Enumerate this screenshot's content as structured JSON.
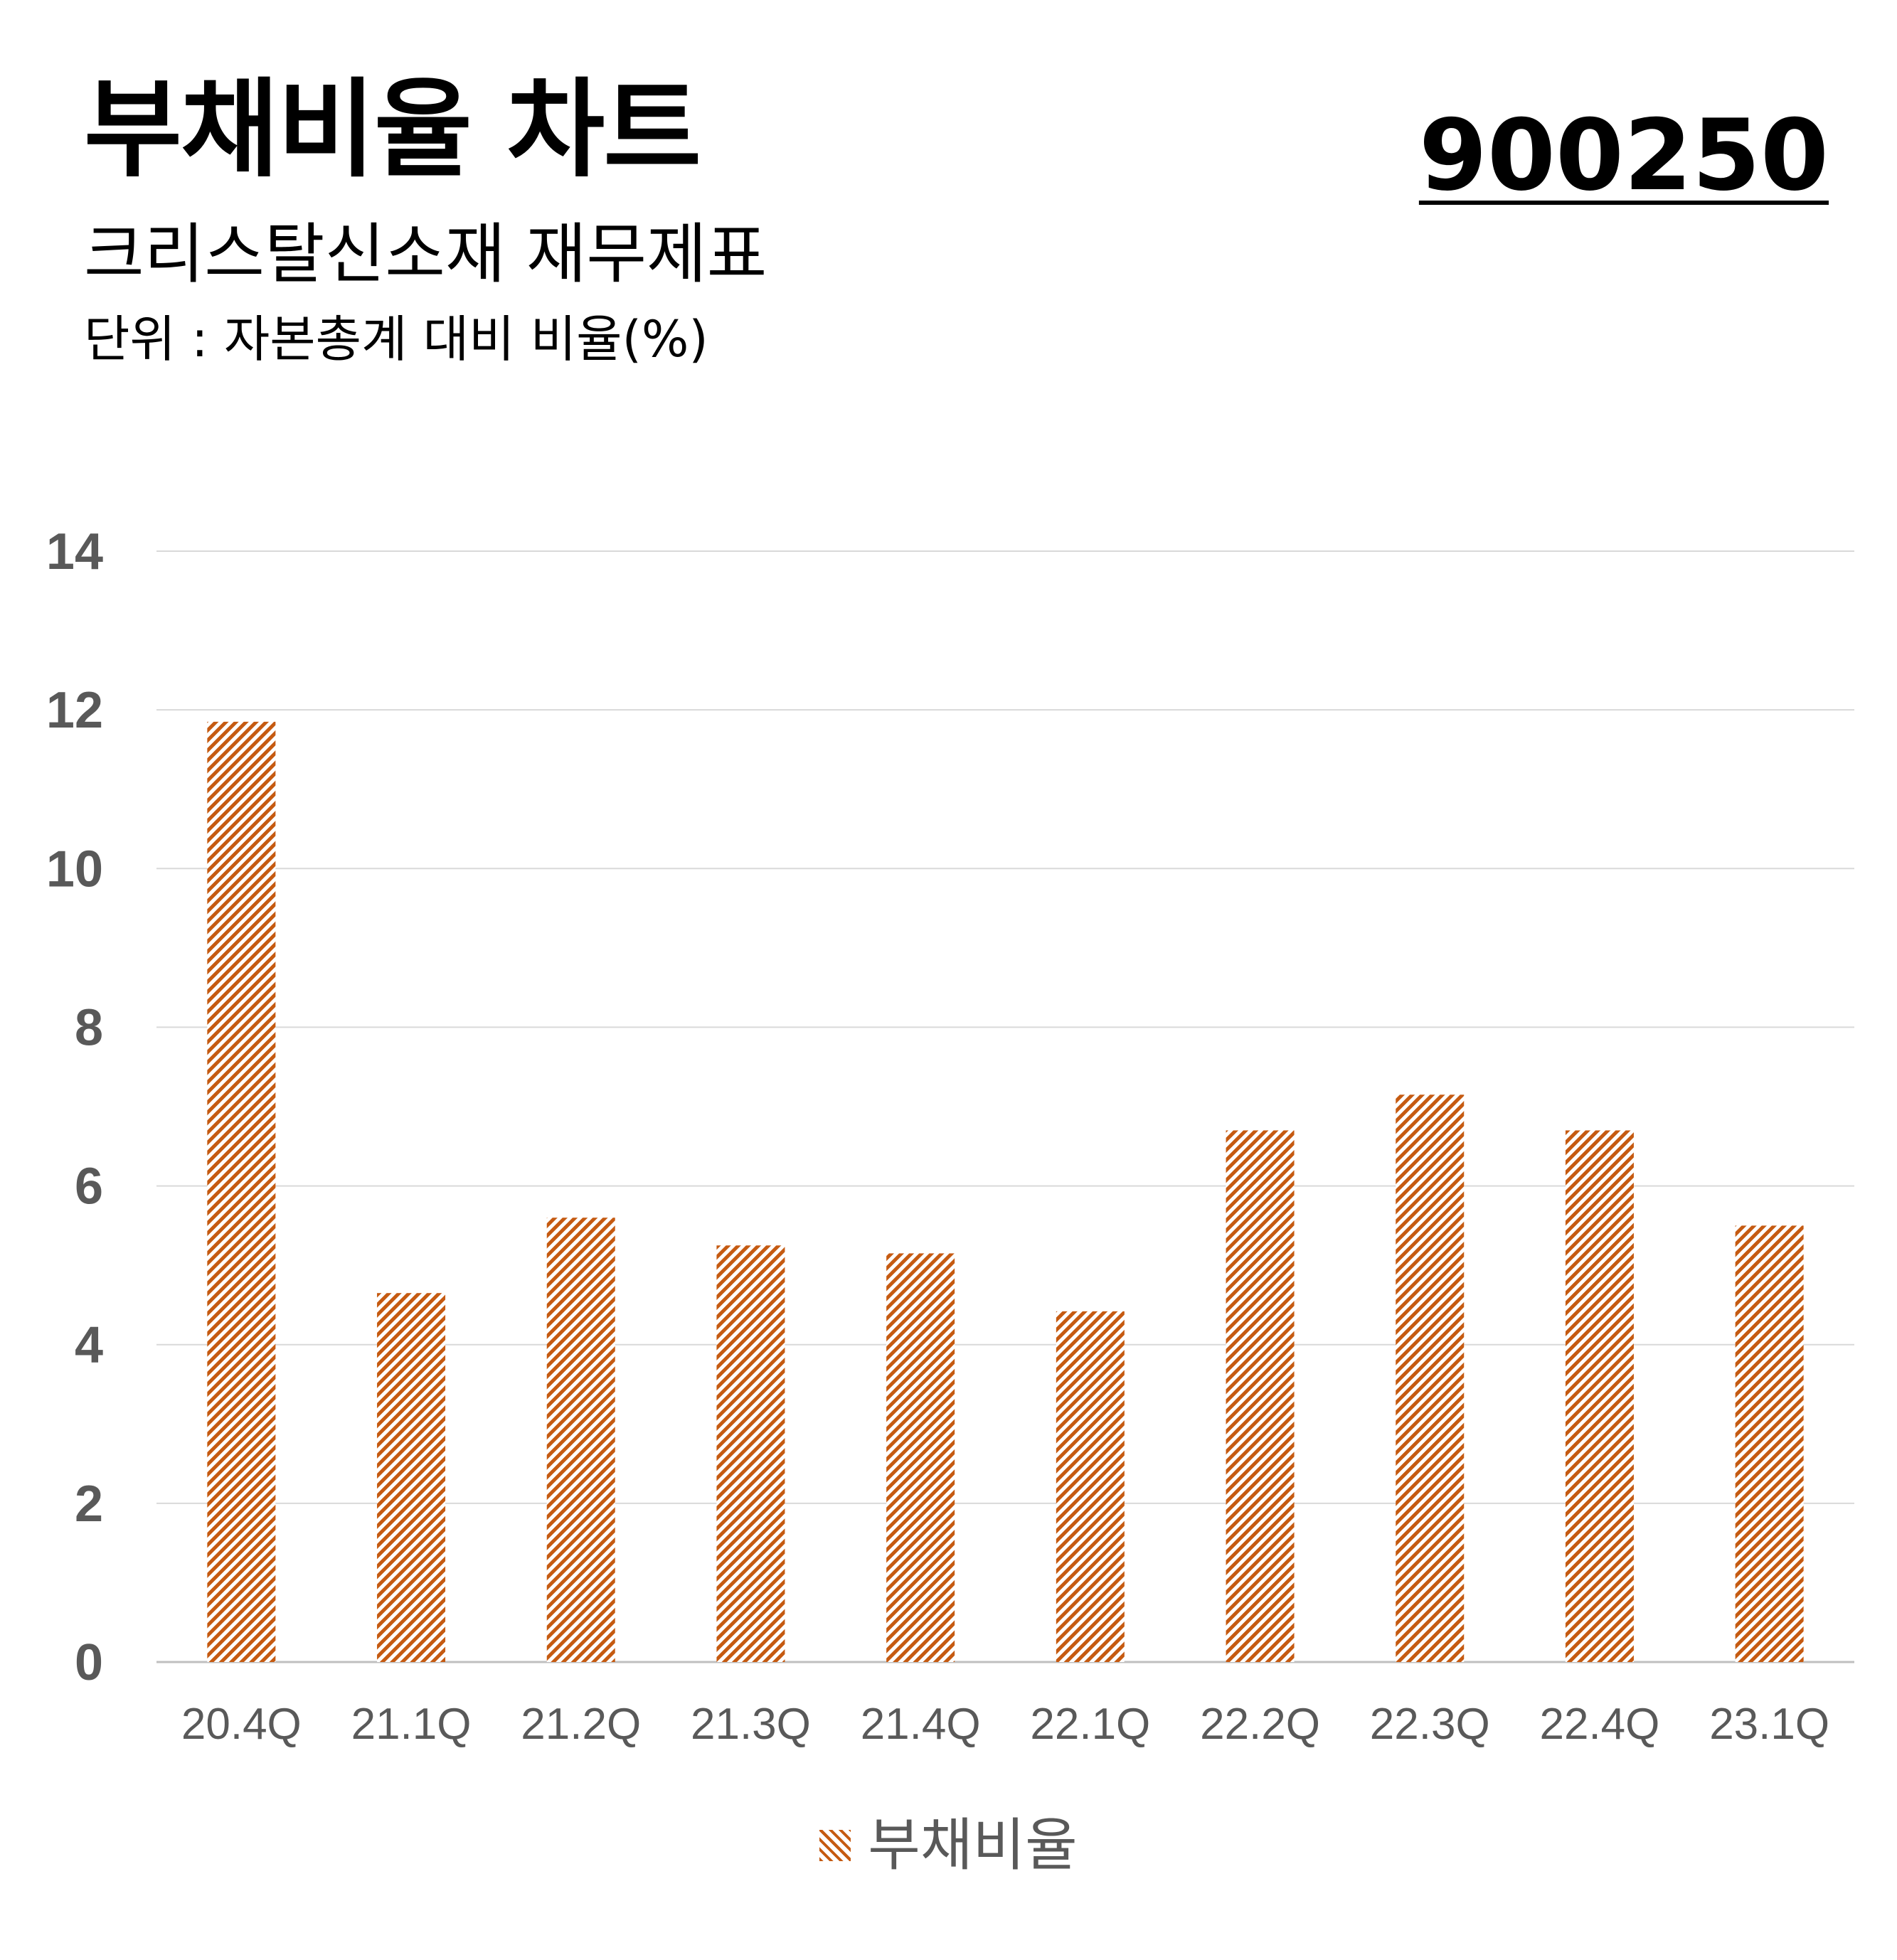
{
  "header": {
    "title": "부채비율 차트",
    "stock_code": "900250",
    "subtitle": "크리스탈신소재 재무제표",
    "unit": "단위 : 자본총계 대비 비율(%)"
  },
  "colors": {
    "bar": "#c55a11",
    "grid": "#d9d9d9",
    "tick_text": "#595959"
  },
  "chart_data": {
    "type": "bar",
    "title": "부채비율 차트",
    "xlabel": "",
    "ylabel": "",
    "categories": [
      "20.4Q",
      "21.1Q",
      "21.2Q",
      "21.3Q",
      "21.4Q",
      "22.1Q",
      "22.2Q",
      "22.3Q",
      "22.4Q",
      "23.1Q"
    ],
    "series": [
      {
        "name": "부채비율",
        "values": [
          11.85,
          4.65,
          5.6,
          5.25,
          5.15,
          4.42,
          6.7,
          7.15,
          6.7,
          5.5
        ]
      }
    ],
    "ylim": [
      0,
      14
    ],
    "yticks": [
      0,
      2,
      4,
      6,
      8,
      10,
      12,
      14
    ],
    "grid": true,
    "legend_position": "bottom"
  }
}
